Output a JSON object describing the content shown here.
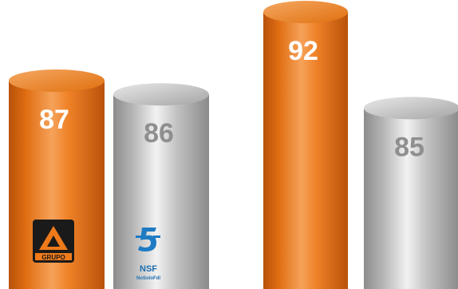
{
  "chart_data": {
    "type": "bar",
    "style": "3d-cylinder",
    "groups": 2,
    "series": [
      {
        "color": "#f07a1a",
        "values": [
          87,
          92
        ]
      },
      {
        "color": "#bfbfbf",
        "values": [
          86,
          85
        ]
      }
    ],
    "value_labels": [
      [
        "87",
        "86"
      ],
      [
        "92",
        "85"
      ]
    ],
    "ylim": [
      0,
      100
    ],
    "grid": false,
    "legend": "none"
  },
  "logos": {
    "group1_orange": {
      "text": "GRUPO",
      "icon": "antena3-logo-icon"
    },
    "group1_gray": {
      "text": "NSF",
      "subtext": "NoSoloFdl",
      "icon": "telecinco-5-logo-icon"
    }
  }
}
